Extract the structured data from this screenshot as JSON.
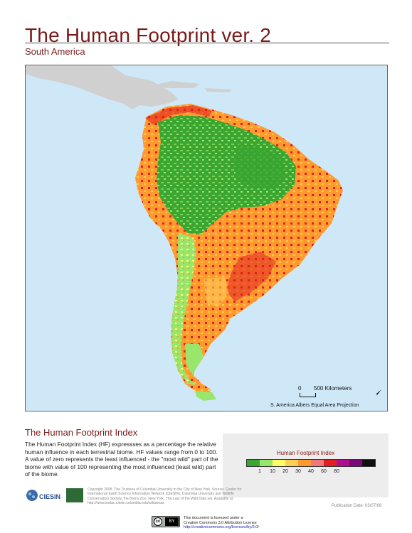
{
  "header": {
    "title": "The Human Footprint ver. 2",
    "subtitle": "South America"
  },
  "map": {
    "region": "South America",
    "ocean_color": "#cfe8f7",
    "land_outside_color": "#d0d0d0",
    "scale": {
      "zero": "0",
      "label": "500 Kilometers"
    },
    "projection": "S. America Albers Equal Area Projection",
    "north_arrow_icon": "north-arrow-icon"
  },
  "index_section": {
    "heading": "The Human Footprint Index",
    "body": "The Human Footprint Index (HF) expressses as a percentage the relative human influence in each terrestrial biome. HF values range from 0 to 100. A value of zero represents the least influenced - the \"most wild\" part of the biome with value of 100 representing the most influenced (least wild) part of the biome."
  },
  "legend": {
    "title": "Human Footprint Index",
    "colors": [
      "#3aa531",
      "#99e66d",
      "#ffff66",
      "#ffcc55",
      "#ff9a2f",
      "#f07878",
      "#e02020",
      "#b01090",
      "#7a0a7a",
      "#101010"
    ],
    "tick_labels": [
      "1",
      "10",
      "20",
      "30",
      "40",
      "60",
      "80"
    ]
  },
  "footer": {
    "copyright": "Copyright 2008. The Trustees of Columbia University in the City of New York. Source: Center for International Earth Science Information Network (CIESIN), Columbia University and Wildlife Conservation Society, the Bronx Zoo, New York. The Last of the Wild Data set. Available at http://www.sedac.ciesin.columbia.edu/wildareas",
    "publication_date": "Publication Date: 03/07/08",
    "license_line1": "This document is licensed under a",
    "license_line2": "Creative Commons 3.0 Attribution License",
    "license_url": "http://creativecommons.org/licenses/by/3.0/",
    "logo_text": "CIESIN",
    "cc_icon": "cc",
    "cc_by": "BY"
  }
}
